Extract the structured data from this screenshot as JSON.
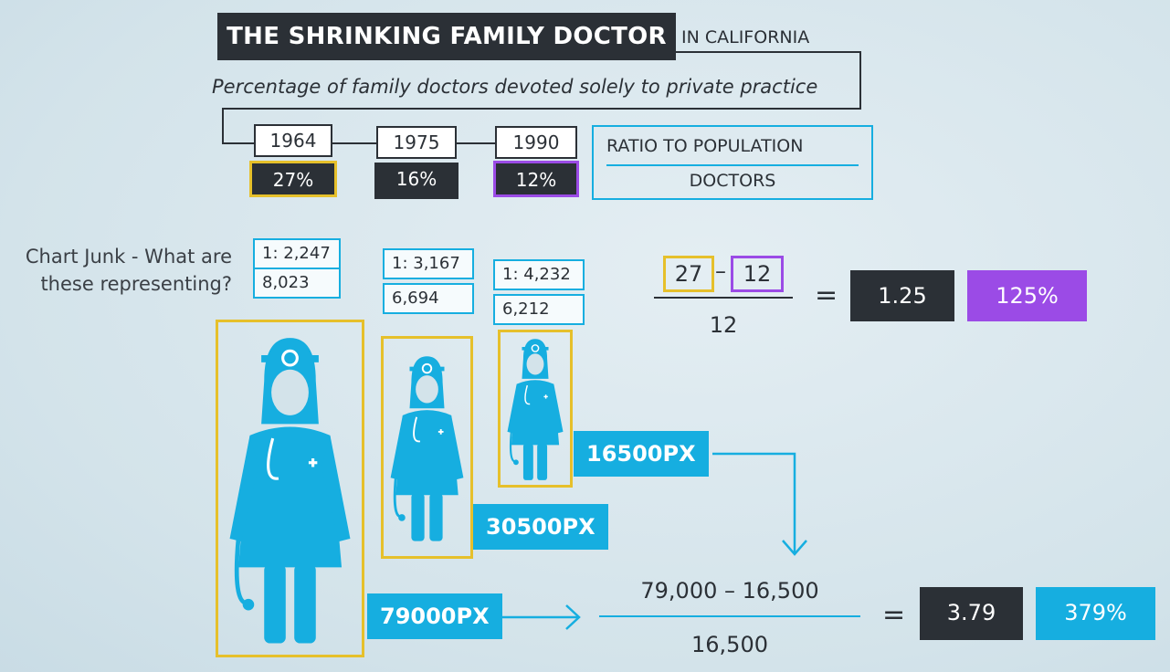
{
  "header": {
    "title": "THE SHRINKING FAMILY DOCTOR",
    "title_suffix": "IN CALIFORNIA",
    "subtitle": "Percentage of family doctors devoted solely to private practice"
  },
  "years": [
    {
      "year": "1964",
      "percent": "27%",
      "ratio": "1: 2,247",
      "doctors": "8,023",
      "pixels": "79000PX",
      "percent_value": 27
    },
    {
      "year": "1975",
      "percent": "16%",
      "ratio": "1: 3,167",
      "doctors": "6,694",
      "pixels": "30500PX",
      "percent_value": 16
    },
    {
      "year": "1990",
      "percent": "12%",
      "ratio": "1: 4,232",
      "doctors": "6,212",
      "pixels": "16500PX",
      "percent_value": 12
    }
  ],
  "legend": {
    "top": "RATIO TO POPULATION",
    "bottom": "DOCTORS"
  },
  "annotation": {
    "question": "Chart Junk - What are these representing?"
  },
  "calc_data": {
    "numerator_a": "27",
    "minus": "–",
    "numerator_b": "12",
    "denominator": "12",
    "equals": "=",
    "result": "1.25",
    "result_percent": "125%"
  },
  "calc_pixels": {
    "numerator": "79,000 – 16,500",
    "denominator": "16,500",
    "equals": "=",
    "result": "3.79",
    "result_percent": "379%"
  },
  "colors": {
    "dark": "#2b3036",
    "blue": "#16aee0",
    "purple": "#9b4be6",
    "gold": "#e6c02b"
  },
  "icons": {
    "doctor": "doctor-figure-icon",
    "arrow": "arrow-icon"
  }
}
